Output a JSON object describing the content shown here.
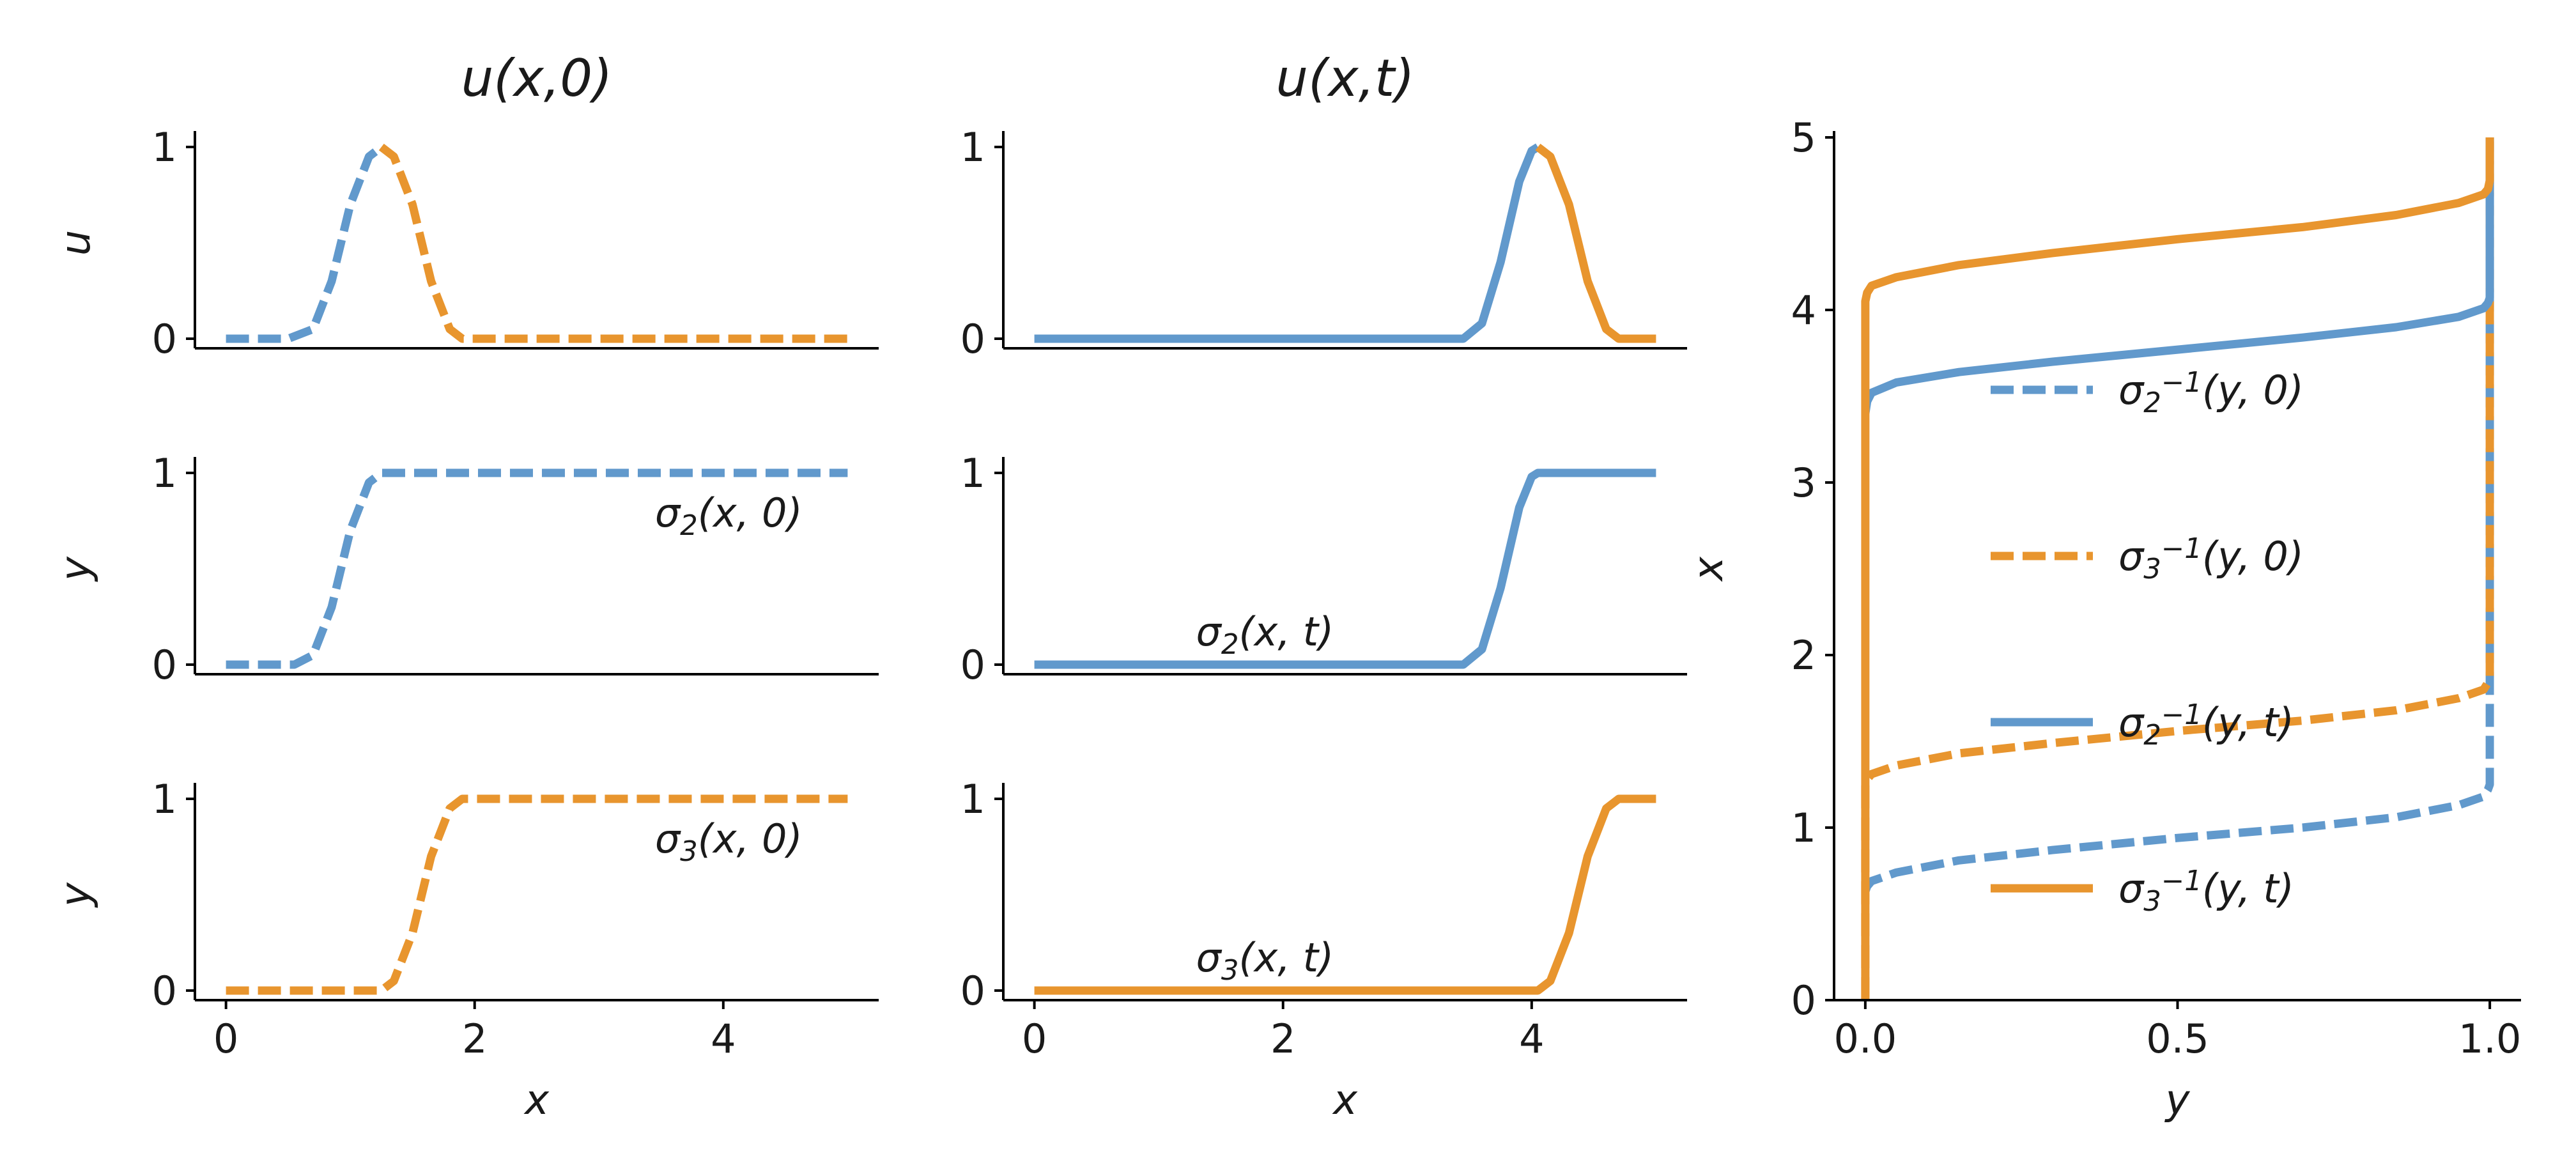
{
  "figure": {
    "colors": {
      "blue": "#6199cc",
      "orange": "#e8952e"
    }
  },
  "chart_data": [
    {
      "panel": "top-left",
      "type": "line",
      "title": "u(x,0)",
      "xlabel": "",
      "ylabel": "u",
      "xlim": [
        -0.25,
        5.25
      ],
      "ylim": [
        -0.05,
        1.05
      ],
      "xticks": [],
      "yticks": [
        {
          "v": 0,
          "label": "0"
        },
        {
          "v": 1,
          "label": "1"
        }
      ],
      "series": [
        {
          "color": "blue",
          "style": "dashed",
          "x": [
            0,
            0.5,
            0.7,
            0.85,
            1.0,
            1.15,
            1.25
          ],
          "y": [
            0,
            0,
            0.05,
            0.3,
            0.7,
            0.95,
            1.0
          ]
        },
        {
          "color": "orange",
          "style": "dashed",
          "x": [
            1.25,
            1.35,
            1.5,
            1.65,
            1.8,
            1.9,
            2.2,
            5.0
          ],
          "y": [
            1.0,
            0.95,
            0.7,
            0.3,
            0.05,
            0,
            0,
            0
          ]
        }
      ],
      "annotations": []
    },
    {
      "panel": "mid-left",
      "type": "line",
      "title": "",
      "xlabel": "",
      "ylabel": "y",
      "xlim": [
        -0.25,
        5.25
      ],
      "ylim": [
        -0.05,
        1.05
      ],
      "xticks": [],
      "yticks": [
        {
          "v": 0,
          "label": "0"
        },
        {
          "v": 1,
          "label": "1"
        }
      ],
      "series": [
        {
          "color": "blue",
          "style": "dashed",
          "x": [
            0,
            0.55,
            0.7,
            0.85,
            1.0,
            1.15,
            1.25,
            5.0
          ],
          "y": [
            0,
            0,
            0.05,
            0.3,
            0.7,
            0.95,
            1.0,
            1.0
          ]
        }
      ],
      "annotations": [
        {
          "text": "σ₂(x, 0)",
          "x": 3.45,
          "y": 0.72
        }
      ]
    },
    {
      "panel": "bottom-left",
      "type": "line",
      "title": "",
      "xlabel": "x",
      "ylabel": "y",
      "xlim": [
        -0.25,
        5.25
      ],
      "ylim": [
        -0.05,
        1.05
      ],
      "xticks": [
        {
          "v": 0,
          "label": "0"
        },
        {
          "v": 2,
          "label": "2"
        },
        {
          "v": 4,
          "label": "4"
        }
      ],
      "yticks": [
        {
          "v": 0,
          "label": "0"
        },
        {
          "v": 1,
          "label": "1"
        }
      ],
      "series": [
        {
          "color": "orange",
          "style": "dashed",
          "x": [
            0,
            1.25,
            1.35,
            1.5,
            1.65,
            1.8,
            1.9,
            5.0
          ],
          "y": [
            0,
            0,
            0.05,
            0.3,
            0.7,
            0.95,
            1.0,
            1.0
          ]
        }
      ],
      "annotations": [
        {
          "text": "σ₃(x, 0)",
          "x": 3.45,
          "y": 0.72
        }
      ]
    },
    {
      "panel": "top-middle",
      "type": "line",
      "title": "u(x,t)",
      "xlabel": "",
      "ylabel": "",
      "xlim": [
        -0.25,
        5.25
      ],
      "ylim": [
        -0.05,
        1.05
      ],
      "xticks": [],
      "yticks": [
        {
          "v": 0,
          "label": "0"
        },
        {
          "v": 1,
          "label": "1"
        }
      ],
      "series": [
        {
          "color": "blue",
          "style": "solid",
          "x": [
            0,
            3.45,
            3.6,
            3.75,
            3.9,
            4.0,
            4.05
          ],
          "y": [
            0,
            0,
            0.08,
            0.4,
            0.82,
            0.98,
            1.0
          ]
        },
        {
          "color": "orange",
          "style": "solid",
          "x": [
            4.05,
            4.15,
            4.3,
            4.45,
            4.6,
            4.7,
            5.0
          ],
          "y": [
            1.0,
            0.95,
            0.7,
            0.3,
            0.05,
            0,
            0
          ]
        }
      ],
      "annotations": []
    },
    {
      "panel": "mid-middle",
      "type": "line",
      "title": "",
      "xlabel": "",
      "ylabel": "",
      "xlim": [
        -0.25,
        5.25
      ],
      "ylim": [
        -0.05,
        1.05
      ],
      "xticks": [],
      "yticks": [
        {
          "v": 0,
          "label": "0"
        },
        {
          "v": 1,
          "label": "1"
        }
      ],
      "series": [
        {
          "color": "blue",
          "style": "solid",
          "x": [
            0,
            3.45,
            3.6,
            3.75,
            3.9,
            4.0,
            4.05,
            5.0
          ],
          "y": [
            0,
            0,
            0.08,
            0.4,
            0.82,
            0.98,
            1.0,
            1.0
          ]
        }
      ],
      "annotations": [
        {
          "text": "σ₂(x, t)",
          "x": 1.3,
          "y": 0.1
        }
      ]
    },
    {
      "panel": "bottom-middle",
      "type": "line",
      "title": "",
      "xlabel": "x",
      "ylabel": "",
      "xlim": [
        -0.25,
        5.25
      ],
      "ylim": [
        -0.05,
        1.05
      ],
      "xticks": [
        {
          "v": 0,
          "label": "0"
        },
        {
          "v": 2,
          "label": "2"
        },
        {
          "v": 4,
          "label": "4"
        }
      ],
      "yticks": [
        {
          "v": 0,
          "label": "0"
        },
        {
          "v": 1,
          "label": "1"
        }
      ],
      "series": [
        {
          "color": "orange",
          "style": "solid",
          "x": [
            0,
            4.05,
            4.15,
            4.3,
            4.45,
            4.6,
            4.7,
            5.0
          ],
          "y": [
            0,
            0,
            0.05,
            0.3,
            0.7,
            0.95,
            1.0,
            1.0
          ]
        }
      ],
      "annotations": [
        {
          "text": "σ₃(x, t)",
          "x": 1.3,
          "y": 0.1
        }
      ]
    },
    {
      "panel": "right",
      "type": "line",
      "title": "",
      "xlabel": "y",
      "ylabel": "x",
      "xlim": [
        -0.05,
        1.05
      ],
      "ylim": [
        0,
        5
      ],
      "xticks": [
        {
          "v": 0,
          "label": "0.0"
        },
        {
          "v": 0.5,
          "label": "0.5"
        },
        {
          "v": 1,
          "label": "1.0"
        }
      ],
      "yticks": [
        {
          "v": 0,
          "label": "0"
        },
        {
          "v": 1,
          "label": "1"
        },
        {
          "v": 2,
          "label": "2"
        },
        {
          "v": 3,
          "label": "3"
        },
        {
          "v": 4,
          "label": "4"
        },
        {
          "v": 5,
          "label": "5"
        }
      ],
      "series": [
        {
          "name": "σ₂⁻¹(y, 0)",
          "color": "blue",
          "style": "dashed",
          "x": [
            0,
            0.003,
            0.01,
            0.05,
            0.15,
            0.3,
            0.5,
            0.7,
            0.85,
            0.95,
            0.99,
            0.997,
            1.0,
            1.0,
            1.0
          ],
          "y": [
            0.63,
            0.66,
            0.69,
            0.74,
            0.81,
            0.87,
            0.94,
            1.0,
            1.06,
            1.13,
            1.18,
            1.22,
            1.25,
            1.85,
            5.0
          ]
        },
        {
          "name": "σ₃⁻¹(y, 0)",
          "color": "orange",
          "style": "dashed",
          "x": [
            0,
            0,
            0.003,
            0.01,
            0.05,
            0.15,
            0.3,
            0.5,
            0.7,
            0.85,
            0.95,
            0.99,
            0.997,
            1.0,
            1.0,
            1.0
          ],
          "y": [
            0,
            1.25,
            1.28,
            1.31,
            1.36,
            1.43,
            1.49,
            1.56,
            1.62,
            1.68,
            1.75,
            1.8,
            1.84,
            1.87,
            4.05,
            5.0
          ]
        },
        {
          "name": "σ₂⁻¹(y, t)",
          "color": "blue",
          "style": "solid",
          "x": [
            0,
            0.003,
            0.01,
            0.05,
            0.15,
            0.3,
            0.5,
            0.7,
            0.85,
            0.95,
            0.99,
            0.997,
            1.0,
            1.0
          ],
          "y": [
            3.4,
            3.47,
            3.52,
            3.58,
            3.64,
            3.7,
            3.77,
            3.84,
            3.9,
            3.96,
            4.01,
            4.04,
            4.07,
            5.0
          ]
        },
        {
          "name": "σ₃⁻¹(y, t)",
          "color": "orange",
          "style": "solid",
          "x": [
            0,
            0,
            0.003,
            0.01,
            0.05,
            0.15,
            0.3,
            0.5,
            0.7,
            0.85,
            0.95,
            0.99,
            0.997,
            1.0,
            1.0
          ],
          "y": [
            0,
            4.05,
            4.1,
            4.14,
            4.19,
            4.26,
            4.33,
            4.41,
            4.48,
            4.55,
            4.62,
            4.67,
            4.7,
            4.75,
            5.0
          ]
        }
      ],
      "legend": "center",
      "annotations": []
    }
  ]
}
